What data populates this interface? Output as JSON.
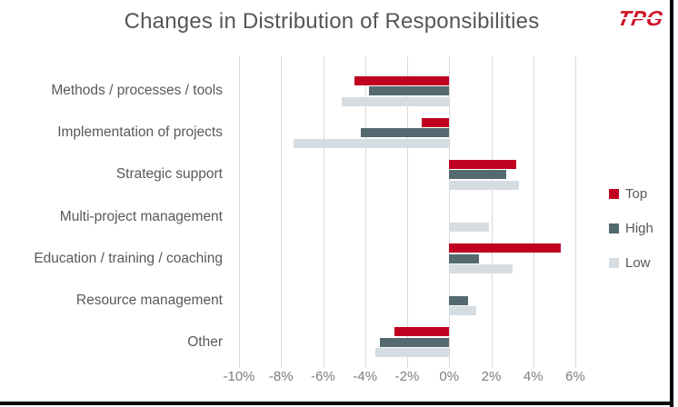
{
  "page": {
    "logo_text": "TPG"
  },
  "chart_data": {
    "type": "bar",
    "orientation": "horizontal",
    "title": "Changes in Distribution of Responsibilities",
    "categories": [
      "Methods / processes / tools",
      "Implementation of projects",
      "Strategic support",
      "Multi-project management",
      "Education / training / coaching",
      "Resource management",
      "Other"
    ],
    "series": [
      {
        "name": "Top",
        "color": "#C00021",
        "values": [
          -4.5,
          -1.3,
          3.2,
          0,
          5.3,
          0,
          -2.6
        ]
      },
      {
        "name": "High",
        "color": "#546A70",
        "values": [
          -3.8,
          -4.2,
          2.7,
          0,
          1.4,
          0.9,
          -3.3
        ]
      },
      {
        "name": "Low",
        "color": "#D6DDE2",
        "values": [
          -5.1,
          -7.4,
          3.3,
          1.9,
          3.0,
          1.3,
          -3.5
        ]
      }
    ],
    "x_ticks": [
      "-10%",
      "-8%",
      "-6%",
      "-4%",
      "-2%",
      "0%",
      "2%",
      "4%",
      "6%"
    ],
    "x_tick_values": [
      -10,
      -8,
      -6,
      -4,
      -2,
      0,
      2,
      4,
      6
    ],
    "xlim": [
      -10,
      6
    ],
    "unit": "%",
    "grid": "vertical",
    "legend_position": "right",
    "colors": {
      "grid": "#d9d9d9",
      "text": "#595959",
      "axis_text": "#7d7d7d",
      "frame": "#060606"
    }
  }
}
